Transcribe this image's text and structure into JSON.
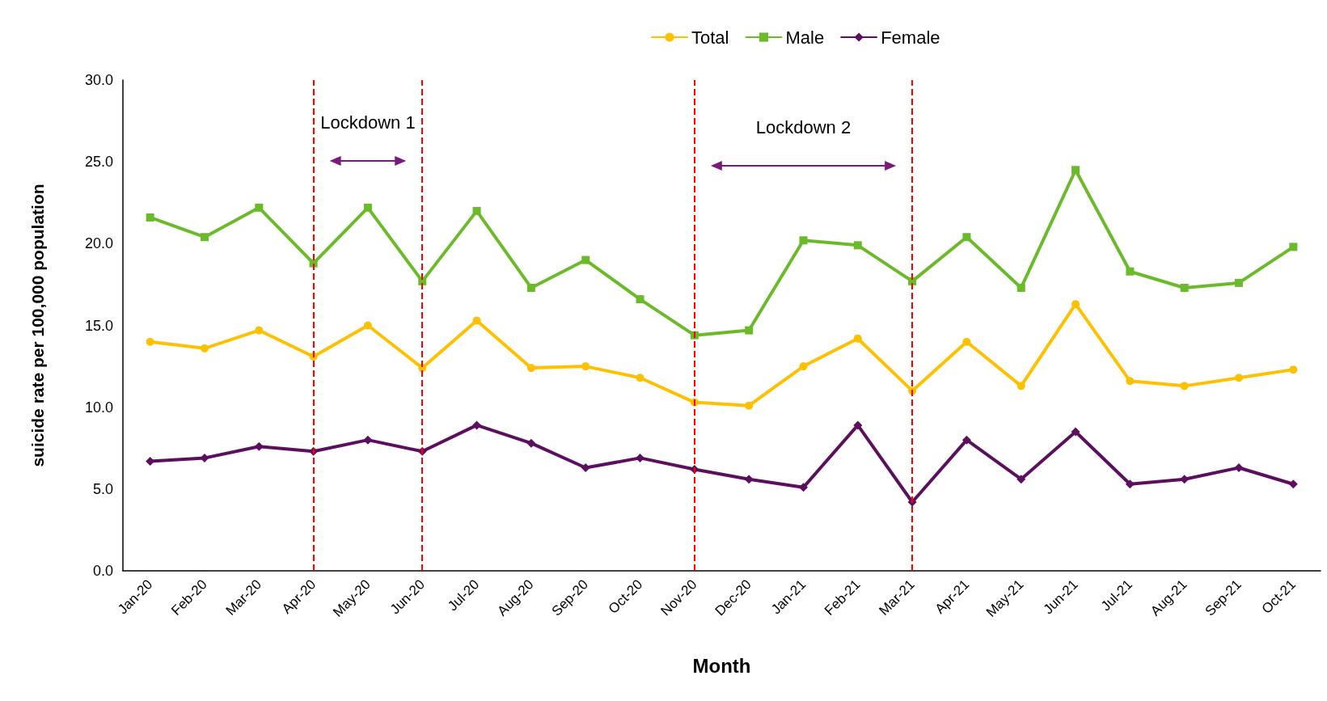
{
  "chart_data": {
    "type": "line",
    "xlabel": "Month",
    "ylabel": "suicide rate per 100,000 population",
    "categories": [
      "Jan-20",
      "Feb-20",
      "Mar-20",
      "Apr-20",
      "May-20",
      "Jun-20",
      "Jul-20",
      "Aug-20",
      "Sep-20",
      "Oct-20",
      "Nov-20",
      "Dec-20",
      "Jan-21",
      "Feb-21",
      "Mar-21",
      "Apr-21",
      "May-21",
      "Jun-21",
      "Jul-21",
      "Aug-21",
      "Sep-21",
      "Oct-21"
    ],
    "series": [
      {
        "name": "Total",
        "color": "#ffc000",
        "marker": "circle",
        "values": [
          14.0,
          13.6,
          14.7,
          13.1,
          15.0,
          12.4,
          15.3,
          12.4,
          12.5,
          11.8,
          10.3,
          10.1,
          12.5,
          14.2,
          11.0,
          14.0,
          11.3,
          16.3,
          11.6,
          11.3,
          11.8,
          12.3
        ]
      },
      {
        "name": "Male",
        "color": "#6aba2a",
        "marker": "square",
        "values": [
          21.6,
          20.4,
          22.2,
          18.8,
          22.2,
          17.7,
          22.0,
          17.3,
          19.0,
          16.6,
          14.4,
          14.7,
          20.2,
          19.9,
          17.7,
          20.4,
          17.3,
          24.5,
          18.3,
          17.3,
          17.6,
          19.8
        ]
      },
      {
        "name": "Female",
        "color": "#5b0f5e",
        "marker": "diamond",
        "values": [
          6.7,
          6.9,
          7.6,
          7.3,
          8.0,
          7.3,
          8.9,
          7.8,
          6.3,
          6.9,
          6.2,
          5.6,
          5.1,
          8.9,
          4.2,
          8.0,
          5.6,
          8.5,
          5.3,
          5.6,
          6.3,
          5.3
        ]
      }
    ],
    "ylim": [
      0,
      30
    ],
    "yticks": [
      {
        "value": 0,
        "label": "0.0"
      },
      {
        "value": 5,
        "label": "5.0"
      },
      {
        "value": 10,
        "label": "10.0"
      },
      {
        "value": 15,
        "label": "15.0"
      },
      {
        "value": 20,
        "label": "20.0"
      },
      {
        "value": 25,
        "label": "25.0"
      },
      {
        "value": 30,
        "label": "30.0"
      }
    ],
    "ref_lines": [
      {
        "axis": "x",
        "value": "Apr-20",
        "color": "#ff0000",
        "line_style": "dashed"
      },
      {
        "axis": "x",
        "value": "Jun-20",
        "color": "#ff0000",
        "line_style": "dashed"
      },
      {
        "axis": "x",
        "value": "Nov-20",
        "color": "#ff0000",
        "line_style": "dashed"
      },
      {
        "axis": "x",
        "value": "Mar-21",
        "color": "#ff0000",
        "line_style": "dashed"
      }
    ],
    "annotations": [
      "Lockdown 1",
      "Lockdown 2"
    ],
    "grid": false,
    "legend": "top",
    "line_style": "solid"
  }
}
